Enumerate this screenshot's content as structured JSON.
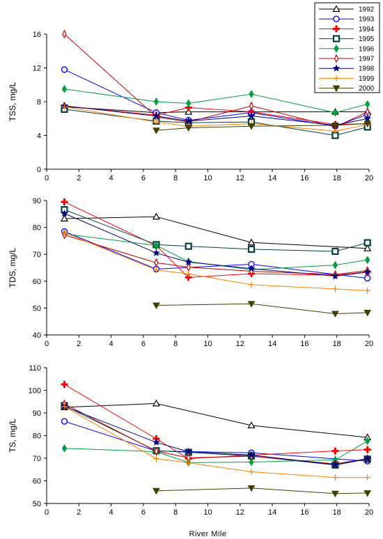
{
  "legend": {
    "entries": [
      {
        "name": "1992",
        "color": "#000000",
        "marker": "triangle-up"
      },
      {
        "name": "1993",
        "color": "#0000ff",
        "marker": "circle"
      },
      {
        "name": "1994",
        "color": "#ff0000",
        "marker": "plus"
      },
      {
        "name": "1995",
        "color": "#004040",
        "marker": "square"
      },
      {
        "name": "1996",
        "color": "#00a040",
        "marker": "diamond"
      },
      {
        "name": "1997",
        "color": "#c00000",
        "marker": "thin-diamond"
      },
      {
        "name": "1998",
        "color": "#000080",
        "marker": "star"
      },
      {
        "name": "1999",
        "color": "#ff8000",
        "marker": "thin-plus"
      },
      {
        "name": "2000",
        "color": "#404000",
        "marker": "triangle-down"
      }
    ]
  },
  "chart_data": [
    {
      "type": "line",
      "ylabel": "TSS, mg/L",
      "xlabel": "",
      "xlim": [
        0,
        20
      ],
      "ylim": [
        0,
        16
      ],
      "xticks": [
        0,
        2,
        4,
        6,
        8,
        10,
        12,
        14,
        16,
        18,
        20
      ],
      "yticks": [
        0,
        4,
        8,
        12,
        16
      ],
      "grid": false,
      "series": [
        {
          "name": "1992",
          "points": [
            [
              1.1,
              7.4
            ],
            [
              6.8,
              6.7
            ],
            [
              8.8,
              6.8
            ],
            [
              12.7,
              6.8
            ],
            [
              17.9,
              6.8
            ],
            [
              19.9,
              6.8
            ]
          ]
        },
        {
          "name": "1993",
          "points": [
            [
              1.1,
              11.8
            ],
            [
              6.8,
              6.7
            ],
            [
              8.8,
              5.8
            ],
            [
              12.7,
              6.7
            ],
            [
              17.9,
              5.1
            ],
            [
              19.9,
              6.5
            ]
          ]
        },
        {
          "name": "1994",
          "points": [
            [
              1.1,
              7.5
            ],
            [
              6.8,
              6.4
            ],
            [
              8.8,
              7.3
            ],
            [
              12.7,
              6.8
            ],
            [
              17.9,
              5.3
            ],
            [
              19.9,
              5.4
            ]
          ]
        },
        {
          "name": "1995",
          "points": [
            [
              1.1,
              7.1
            ],
            [
              6.8,
              5.7
            ],
            [
              8.8,
              5.5
            ],
            [
              12.7,
              5.6
            ],
            [
              17.9,
              4.0
            ],
            [
              19.9,
              5.0
            ]
          ]
        },
        {
          "name": "1996",
          "points": [
            [
              1.1,
              9.5
            ],
            [
              6.8,
              8.0
            ],
            [
              8.8,
              7.8
            ],
            [
              12.7,
              8.9
            ],
            [
              17.9,
              6.7
            ],
            [
              19.9,
              7.7
            ]
          ]
        },
        {
          "name": "1997",
          "points": [
            [
              1.1,
              16.0
            ],
            [
              6.8,
              6.2
            ],
            [
              8.8,
              5.6
            ],
            [
              12.7,
              7.5
            ],
            [
              17.9,
              5.0
            ],
            [
              19.9,
              6.8
            ]
          ]
        },
        {
          "name": "1998",
          "points": [
            [
              1.1,
              7.5
            ],
            [
              6.8,
              6.3
            ],
            [
              8.8,
              5.7
            ],
            [
              12.7,
              6.3
            ],
            [
              17.9,
              5.2
            ],
            [
              19.9,
              6.0
            ]
          ]
        },
        {
          "name": "1999",
          "points": [
            [
              1.1,
              7.4
            ],
            [
              6.8,
              5.6
            ],
            [
              8.8,
              5.1
            ],
            [
              12.7,
              5.4
            ],
            [
              17.9,
              4.5
            ],
            [
              19.9,
              5.3
            ]
          ]
        },
        {
          "name": "2000",
          "points": [
            [
              6.8,
              4.6
            ],
            [
              8.8,
              4.9
            ],
            [
              12.7,
              5.1
            ],
            [
              17.9,
              5.2
            ],
            [
              19.9,
              5.4
            ]
          ]
        }
      ]
    },
    {
      "type": "line",
      "ylabel": "TDS, mg/L",
      "xlabel": "",
      "xlim": [
        0,
        20
      ],
      "ylim": [
        40,
        90
      ],
      "xticks": [
        0,
        2,
        4,
        6,
        8,
        10,
        12,
        14,
        16,
        18,
        20
      ],
      "yticks": [
        40,
        50,
        60,
        70,
        80,
        90
      ],
      "grid": false,
      "series": [
        {
          "name": "1992",
          "points": [
            [
              1.1,
              83.3
            ],
            [
              6.8,
              84.0
            ],
            [
              12.7,
              74.4
            ],
            [
              19.9,
              72.2
            ]
          ]
        },
        {
          "name": "1993",
          "points": [
            [
              1.1,
              78.5
            ],
            [
              6.8,
              64.5
            ],
            [
              12.7,
              66.3
            ],
            [
              19.9,
              61.1
            ]
          ]
        },
        {
          "name": "1994",
          "points": [
            [
              1.1,
              89.5
            ],
            [
              6.8,
              73.2
            ],
            [
              8.8,
              61.4
            ],
            [
              12.7,
              62.8
            ],
            [
              17.9,
              62.2
            ],
            [
              19.9,
              63.5
            ]
          ]
        },
        {
          "name": "1995",
          "points": [
            [
              1.1,
              86.6
            ],
            [
              6.8,
              73.6
            ],
            [
              8.8,
              73.0
            ],
            [
              12.7,
              71.9
            ],
            [
              17.9,
              71.1
            ],
            [
              19.9,
              74.3
            ]
          ]
        },
        {
          "name": "1996",
          "points": [
            [
              1.1,
              77.6
            ],
            [
              6.8,
              73.3
            ],
            [
              8.8,
              67.3
            ],
            [
              12.7,
              64.3
            ],
            [
              17.9,
              66.0
            ],
            [
              19.9,
              67.9
            ]
          ]
        },
        {
          "name": "1997",
          "points": [
            [
              1.1,
              77.2
            ],
            [
              6.8,
              66.9
            ],
            [
              8.8,
              65.2
            ],
            [
              12.7,
              63.7
            ],
            [
              17.9,
              62.5
            ],
            [
              19.9,
              64.0
            ]
          ]
        },
        {
          "name": "1998",
          "points": [
            [
              1.1,
              85.2
            ],
            [
              6.8,
              70.5
            ],
            [
              8.8,
              67.1
            ],
            [
              12.7,
              64.7
            ],
            [
              17.9,
              61.9
            ],
            [
              19.9,
              63.4
            ]
          ]
        },
        {
          "name": "1999",
          "points": [
            [
              1.1,
              78.1
            ],
            [
              6.8,
              64.2
            ],
            [
              8.8,
              62.7
            ],
            [
              12.7,
              58.7
            ],
            [
              17.9,
              57.1
            ],
            [
              19.9,
              56.5
            ]
          ]
        },
        {
          "name": "2000",
          "points": [
            [
              6.8,
              51.0
            ],
            [
              12.7,
              51.6
            ],
            [
              17.9,
              47.9
            ],
            [
              19.9,
              48.3
            ]
          ]
        }
      ]
    },
    {
      "type": "line",
      "ylabel": "TS, mg/L",
      "xlabel": "River Mile",
      "xlim": [
        0,
        20
      ],
      "ylim": [
        50,
        110
      ],
      "xticks": [
        0,
        2,
        4,
        6,
        8,
        10,
        12,
        14,
        16,
        18,
        20
      ],
      "yticks": [
        50,
        60,
        70,
        80,
        90,
        100,
        110
      ],
      "grid": false,
      "series": [
        {
          "name": "1992",
          "points": [
            [
              1.1,
              92.5
            ],
            [
              6.8,
              94.2
            ],
            [
              12.7,
              84.5
            ],
            [
              19.9,
              79.2
            ]
          ]
        },
        {
          "name": "1993",
          "points": [
            [
              1.1,
              86.3
            ],
            [
              6.8,
              73.2
            ],
            [
              12.7,
              72.4
            ],
            [
              19.9,
              68.7
            ]
          ]
        },
        {
          "name": "1994",
          "points": [
            [
              1.1,
              102.6
            ],
            [
              6.8,
              78.6
            ],
            [
              8.8,
              69.8
            ],
            [
              12.7,
              71.4
            ],
            [
              17.9,
              73.2
            ],
            [
              19.9,
              73.8
            ]
          ]
        },
        {
          "name": "1995",
          "points": [
            [
              1.1,
              93.2
            ],
            [
              6.8,
              73.3
            ],
            [
              8.8,
              72.6
            ],
            [
              12.7,
              71.0
            ],
            [
              17.9,
              67.0
            ],
            [
              19.9,
              69.6
            ]
          ]
        },
        {
          "name": "1996",
          "points": [
            [
              1.1,
              74.4
            ],
            [
              6.8,
              72.9
            ],
            [
              8.8,
              68.1
            ],
            [
              12.7,
              68.3
            ],
            [
              17.9,
              69.3
            ],
            [
              19.9,
              77.6
            ]
          ]
        },
        {
          "name": "1997",
          "points": [
            [
              1.1,
              94.0
            ],
            [
              6.8,
              73.1
            ],
            [
              8.8,
              70.2
            ],
            [
              12.7,
              70.9
            ],
            [
              17.9,
              67.5
            ],
            [
              19.9,
              69.8
            ]
          ]
        },
        {
          "name": "1998",
          "points": [
            [
              1.1,
              92.9
            ],
            [
              6.8,
              77.0
            ],
            [
              8.8,
              72.9
            ],
            [
              12.7,
              71.4
            ],
            [
              17.9,
              67.1
            ],
            [
              19.9,
              69.8
            ]
          ]
        },
        {
          "name": "1999",
          "points": [
            [
              1.1,
              92.8
            ],
            [
              6.8,
              69.8
            ],
            [
              8.8,
              68.0
            ],
            [
              12.7,
              64.0
            ],
            [
              17.9,
              61.5
            ],
            [
              19.9,
              61.5
            ]
          ]
        },
        {
          "name": "2000",
          "points": [
            [
              6.8,
              55.6
            ],
            [
              12.7,
              56.8
            ],
            [
              17.9,
              54.4
            ],
            [
              19.9,
              54.6
            ]
          ]
        }
      ]
    }
  ]
}
